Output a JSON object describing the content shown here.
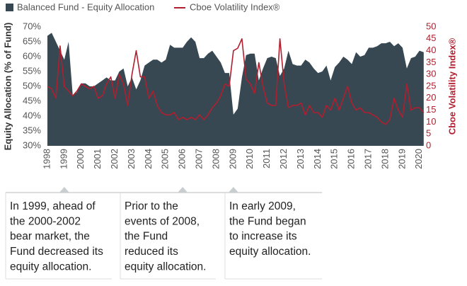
{
  "chart_data": {
    "type": "line",
    "y_label": "Equity Allocation (% of Fund)",
    "y2_label": "Cboe Volatility Index®",
    "x": [
      1998,
      1998.25,
      1998.5,
      1998.75,
      1999,
      1999.25,
      1999.5,
      1999.75,
      2000,
      2000.25,
      2000.5,
      2000.75,
      2001,
      2001.25,
      2001.5,
      2001.75,
      2002,
      2002.25,
      2002.5,
      2002.75,
      2003,
      2003.25,
      2003.5,
      2003.75,
      2004,
      2004.25,
      2004.5,
      2004.75,
      2005,
      2005.25,
      2005.5,
      2005.75,
      2006,
      2006.25,
      2006.5,
      2006.75,
      2007,
      2007.25,
      2007.5,
      2007.75,
      2008,
      2008.25,
      2008.5,
      2008.75,
      2009,
      2009.25,
      2009.5,
      2009.75,
      2010,
      2010.25,
      2010.5,
      2010.75,
      2011,
      2011.25,
      2011.5,
      2011.75,
      2012,
      2012.25,
      2012.5,
      2012.75,
      2013,
      2013.25,
      2013.5,
      2013.75,
      2014,
      2014.25,
      2014.5,
      2014.75,
      2015,
      2015.25,
      2015.5,
      2015.75,
      2016,
      2016.25,
      2016.5,
      2016.75,
      2017,
      2017.25,
      2017.5,
      2017.75,
      2018,
      2018.25,
      2018.5,
      2018.75,
      2019,
      2019.25,
      2019.5,
      2019.75,
      2020,
      2020.25
    ],
    "series": [
      {
        "name": "Balanced Fund - Equity Allocation",
        "type": "area",
        "color": "#374852",
        "values": [
          67,
          68,
          65,
          62,
          59,
          65,
          47,
          48,
          51,
          51,
          50,
          50,
          51,
          52,
          53,
          52,
          52,
          55,
          56,
          50,
          53,
          49,
          52,
          57,
          58,
          59,
          59,
          58,
          59,
          64,
          63,
          63,
          63,
          65,
          66.5,
          65,
          59.5,
          59.5,
          61,
          62,
          60,
          58,
          54.5,
          54.5,
          40.5,
          42.5,
          53,
          60.5,
          61,
          61,
          52,
          56,
          59.5,
          60,
          59.5,
          53.5,
          56,
          62,
          57.5,
          57,
          57,
          59,
          58,
          56,
          54.5,
          55,
          57,
          52,
          56.5,
          58,
          60,
          59,
          57.5,
          61.5,
          60,
          60.5,
          63,
          63,
          63.5,
          64.5,
          64.5,
          65,
          63.5,
          64.5,
          63,
          56,
          59.5,
          60,
          62,
          61.5
        ]
      },
      {
        "name": "Cboe Volatility Index®",
        "type": "line",
        "axis": "y2",
        "color": "#b01f2f",
        "values": [
          25,
          24,
          20,
          42,
          25,
          23,
          21,
          23,
          26,
          25,
          24,
          25,
          20,
          21,
          26,
          29,
          20,
          30,
          26,
          17,
          30,
          40,
          29,
          29,
          20,
          23,
          17,
          14,
          13,
          13,
          14,
          11,
          12,
          11,
          12,
          11,
          13,
          11,
          13,
          16,
          18,
          21,
          26,
          25,
          40,
          41,
          45,
          28,
          26,
          22,
          35,
          25,
          18,
          17,
          17,
          45,
          26,
          16,
          17,
          17,
          18,
          13,
          17,
          14,
          14,
          12,
          17,
          15,
          20,
          15,
          20,
          25,
          18,
          15,
          16,
          14,
          14,
          13,
          12,
          10,
          9,
          11,
          20,
          15,
          12,
          26,
          15,
          16,
          16,
          14
        ]
      }
    ],
    "xlim": [
      1998,
      2020.25
    ],
    "xticks": [
      1998,
      1999,
      2000,
      2001,
      2002,
      2003,
      2004,
      2005,
      2006,
      2007,
      2008,
      2009,
      2010,
      2011,
      2012,
      2013,
      2014,
      2015,
      2016,
      2017,
      2018,
      2019,
      2020
    ],
    "ylim": [
      30,
      70
    ],
    "yticks": [
      {
        "value": 30,
        "label": "30%"
      },
      {
        "value": 35,
        "label": "35%"
      },
      {
        "value": 40,
        "label": "40%"
      },
      {
        "value": 45,
        "label": "45%"
      },
      {
        "value": 50,
        "label": "50%"
      },
      {
        "value": 55,
        "label": "55%"
      },
      {
        "value": 60,
        "label": "60%"
      },
      {
        "value": 65,
        "label": "65%"
      },
      {
        "value": 70,
        "label": "70%"
      }
    ],
    "y2lim": [
      0,
      50
    ],
    "y2ticks": [
      0,
      5,
      10,
      15,
      20,
      25,
      30,
      35,
      40,
      45,
      50
    ],
    "legend": "top-left",
    "grid": false,
    "annotations": [
      {
        "x": 1999,
        "lines": [
          "In 1999, ahead of",
          "the 2000-2002",
          "bear market, the",
          "Fund decreased its",
          "equity allocation."
        ]
      },
      {
        "x": 2006,
        "lines": [
          "Prior to the",
          "events of 2008,",
          "the Fund",
          "reduced its",
          "equity allocation."
        ]
      },
      {
        "x": 2009,
        "lines": [
          "In early 2009,",
          "the Fund began",
          "to increase its",
          "equity allocation."
        ]
      }
    ]
  }
}
